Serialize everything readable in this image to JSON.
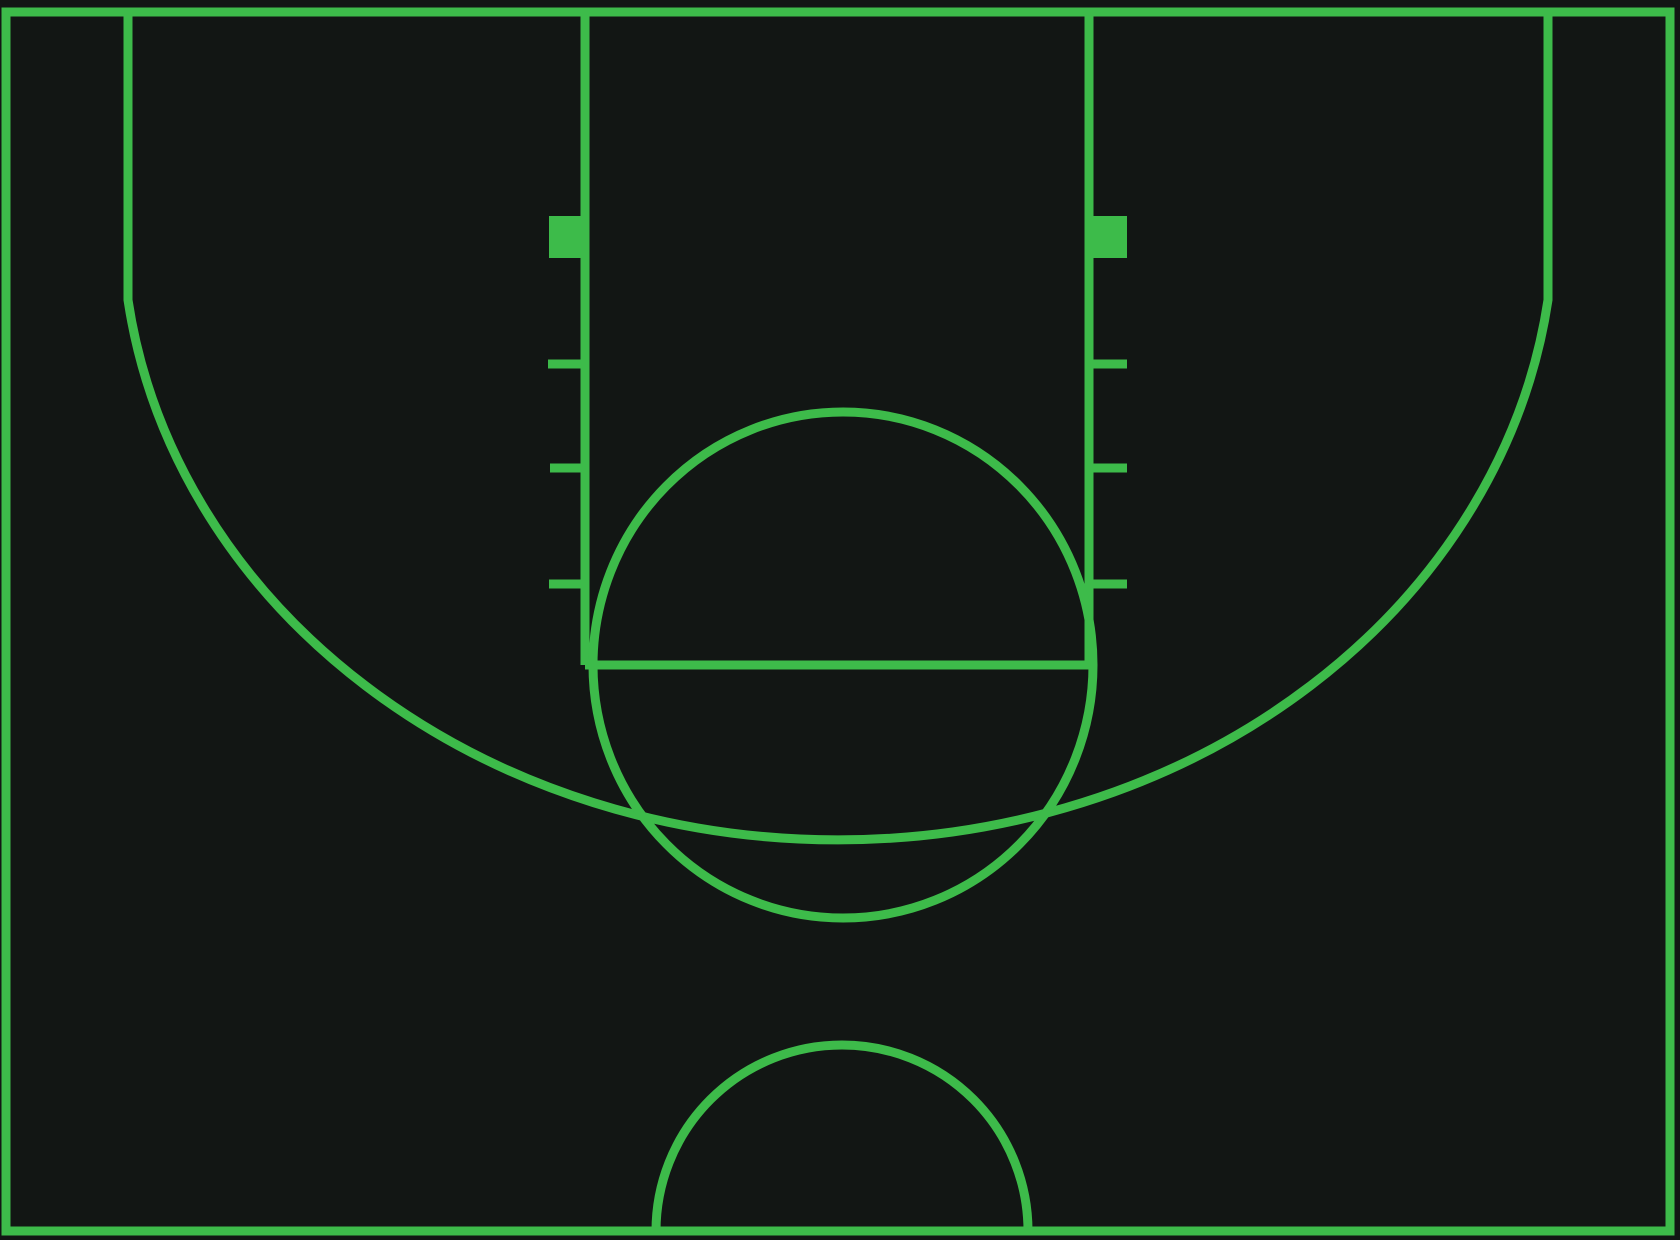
{
  "diagram": {
    "type": "basketball-half-court",
    "colors": {
      "background": "#121614",
      "line": "#3dbb4a",
      "block": "#3dbb4a"
    },
    "lane_hash_marks_per_side": 3,
    "lane_blocks_per_side": 1
  }
}
